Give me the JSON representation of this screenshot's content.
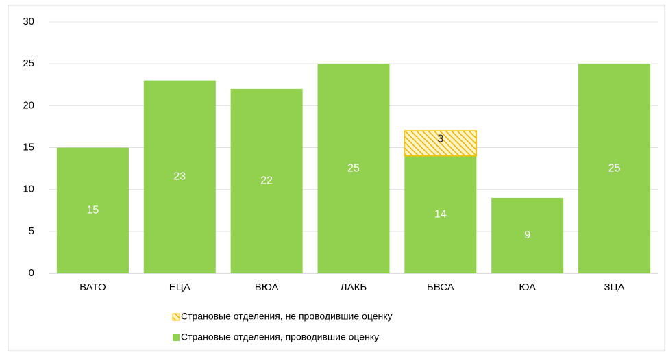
{
  "chart_data": {
    "type": "stacked_bar",
    "categories": [
      "ВАТО",
      "ЕЦА",
      "ВЮА",
      "ЛАКБ",
      "БВСА",
      "ЮА",
      "ЗЦА"
    ],
    "series": [
      {
        "name": "Страновые отделения, проводившие оценку",
        "color": "#92d050",
        "values": [
          15,
          23,
          22,
          25,
          14,
          9,
          25
        ]
      },
      {
        "name": "Страновые отделения, не проводившие оценку",
        "color": "#ffc000",
        "hatch": true,
        "values": [
          null,
          null,
          null,
          null,
          3,
          null,
          null
        ]
      }
    ],
    "ylim": [
      0,
      30
    ],
    "yticks": [
      0,
      5,
      10,
      15,
      20,
      25,
      30
    ],
    "grid": true,
    "legend": "bottom"
  }
}
